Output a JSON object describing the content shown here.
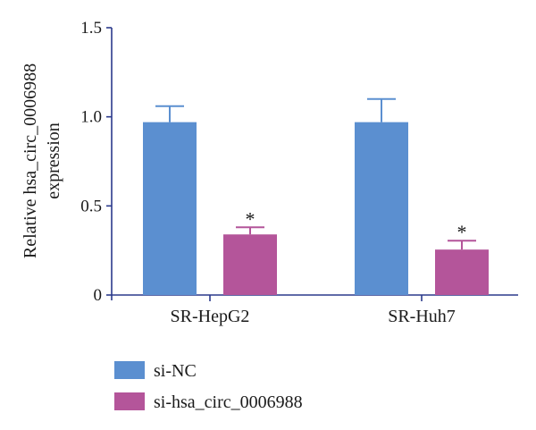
{
  "chart_data": {
    "type": "bar",
    "categories": [
      "SR-HepG2",
      "SR-Huh7"
    ],
    "series": [
      {
        "name": "si-NC",
        "values": [
          0.97,
          0.97
        ],
        "errors": [
          0.09,
          0.13
        ],
        "color": "#5b8fd0"
      },
      {
        "name": "si-hsa_circ_0006988",
        "values": [
          0.34,
          0.255
        ],
        "errors": [
          0.04,
          0.05
        ],
        "color": "#b4559a"
      }
    ],
    "significance": [
      [
        "",
        "*"
      ],
      [
        "",
        "*"
      ]
    ],
    "ylabel_lines": [
      "Relative hsa_circ_0006988",
      "expression"
    ],
    "xlabel": "",
    "ylim": [
      0,
      1.5
    ],
    "yticks": [
      "0",
      "0.5",
      "1.0",
      "1.5"
    ],
    "ytick_values": [
      0,
      0.5,
      1.0,
      1.5
    ],
    "grid": false,
    "legend_position": "bottom-left"
  }
}
